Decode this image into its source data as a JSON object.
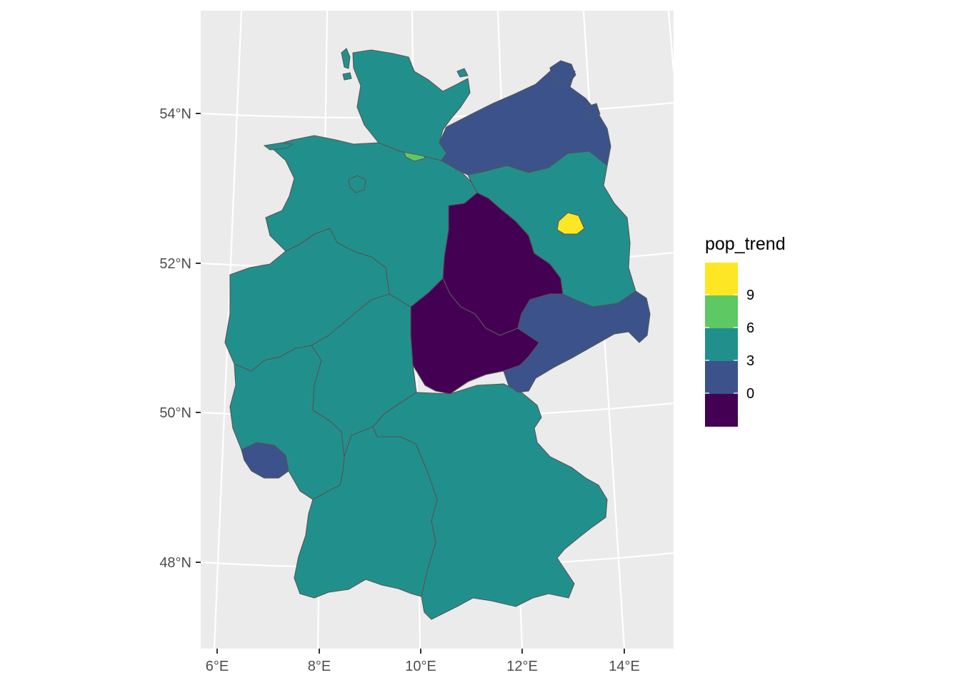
{
  "chart_data": {
    "type": "choropleth",
    "title": "",
    "xlabel": "",
    "ylabel": "",
    "fill_variable": "pop_trend",
    "x_ticks": [
      "6°E",
      "8°E",
      "10°E",
      "12°E",
      "14°E"
    ],
    "y_ticks": [
      "48°N",
      "50°N",
      "52°N",
      "54°N"
    ],
    "legend": {
      "title": "pop_trend",
      "position": "right",
      "breaks": [
        "9",
        "6",
        "3",
        "0"
      ],
      "bins": [
        {
          "range": "> 9",
          "color": "#FDE725"
        },
        {
          "range": "6 to 9",
          "color": "#5EC962"
        },
        {
          "range": "3 to 6",
          "color": "#21908C"
        },
        {
          "range": "0 to 3",
          "color": "#3B528B"
        },
        {
          "range": "< 0",
          "color": "#440154"
        }
      ]
    },
    "regions": [
      {
        "name": "Schleswig-Holstein",
        "bin": "3 to 6"
      },
      {
        "name": "Hamburg",
        "bin": "6 to 9"
      },
      {
        "name": "Mecklenburg-Vorpommern",
        "bin": "0 to 3"
      },
      {
        "name": "Niedersachsen",
        "bin": "3 to 6"
      },
      {
        "name": "Bremen",
        "bin": "3 to 6"
      },
      {
        "name": "Brandenburg",
        "bin": "3 to 6"
      },
      {
        "name": "Berlin",
        "bin": "> 9"
      },
      {
        "name": "Sachsen-Anhalt",
        "bin": "< 0"
      },
      {
        "name": "Thüringen",
        "bin": "< 0"
      },
      {
        "name": "Sachsen",
        "bin": "0 to 3"
      },
      {
        "name": "Nordrhein-Westfalen",
        "bin": "3 to 6"
      },
      {
        "name": "Hessen",
        "bin": "3 to 6"
      },
      {
        "name": "Rheinland-Pfalz",
        "bin": "3 to 6"
      },
      {
        "name": "Saarland",
        "bin": "0 to 3"
      },
      {
        "name": "Baden-Württemberg",
        "bin": "3 to 6"
      },
      {
        "name": "Bayern",
        "bin": "3 to 6"
      }
    ],
    "grid": true,
    "panel_background": "#EBEBEB",
    "grid_color": "#FFFFFF",
    "border_color": "#555555"
  }
}
